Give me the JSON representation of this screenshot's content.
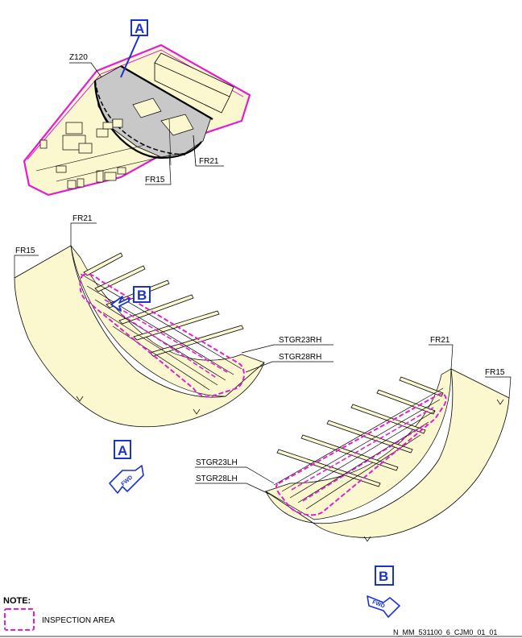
{
  "zone_label": "Z120",
  "callouts": {
    "a": "A",
    "b": "B"
  },
  "frames": {
    "fr21": "FR21",
    "fr15": "FR15"
  },
  "stringers": {
    "rh_upper": "STGR23RH",
    "rh_lower": "STGR28RH",
    "lh_upper": "STGR23LH",
    "lh_lower": "STGR28LH"
  },
  "fwd_arrow_text": "FWD",
  "note": {
    "title": "NOTE:",
    "legend_text": "INSPECTION AREA"
  },
  "figure_id": "N_MM_531100_6_CJM0_01_01",
  "colors": {
    "skin": "#fbf7cf",
    "inspection": "#e020d0",
    "callout": "#1a33cc",
    "shaded": "#c8c8c8"
  }
}
